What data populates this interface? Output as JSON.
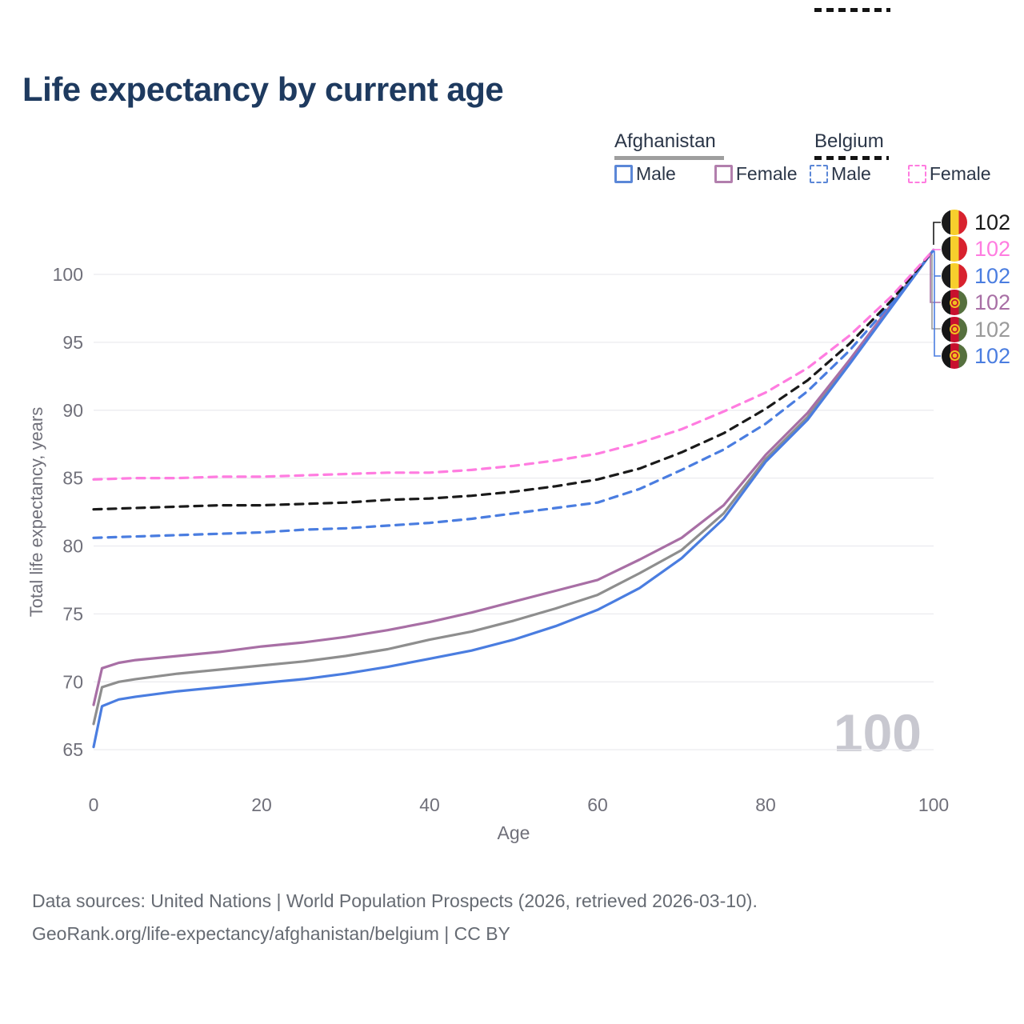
{
  "title": "Life expectancy by current age",
  "legend": {
    "afghanistan": {
      "label": "Afghanistan",
      "items": [
        {
          "label": "Male"
        },
        {
          "label": "Female"
        }
      ]
    },
    "belgium": {
      "label": "Belgium",
      "items": [
        {
          "label": "Male"
        },
        {
          "label": "Female"
        }
      ]
    }
  },
  "watermark": "100",
  "footer": {
    "line1": "Data sources: United Nations | World Population Prospects (2026, retrieved 2026-03-10).",
    "line2": "GeoRank.org/life-expectancy/afghanistan/belgium | CC BY"
  },
  "colors": {
    "title": "#1e3a5f",
    "male_blue": "#4a7de0",
    "afghanistan_female_purple": "#a86fa5",
    "afghanistan_combined_gray": "#8e8e8e",
    "belgium_female_pink": "#ff7ce0",
    "belgium_combined_black": "#1a1a1a",
    "gridline": "#ebebef",
    "axis_text": "#70707a",
    "watermark_gray": "#c8c8d0"
  },
  "end_labels": [
    {
      "flag": "belgium",
      "value": "102",
      "color": "#1a1a1a"
    },
    {
      "flag": "belgium",
      "value": "102",
      "color": "#ff7ce0"
    },
    {
      "flag": "belgium",
      "value": "102",
      "color": "#4a7de0"
    },
    {
      "flag": "afghanistan",
      "value": "102",
      "color": "#a86fa5"
    },
    {
      "flag": "afghanistan",
      "value": "102",
      "color": "#9a9a9a"
    },
    {
      "flag": "afghanistan",
      "value": "102",
      "color": "#4a7de0"
    }
  ],
  "chart_data": {
    "type": "line",
    "title": "Life expectancy by current age",
    "xlabel": "Age",
    "ylabel": "Total life expectancy, years",
    "xlim": [
      0,
      100
    ],
    "ylim": [
      65,
      102.3
    ],
    "xticks": [
      0,
      20,
      40,
      60,
      80,
      100
    ],
    "yticks": [
      65,
      70,
      75,
      80,
      85,
      90,
      95,
      100
    ],
    "grid": "horizontal-only",
    "legend_position": "top-right",
    "series": [
      {
        "id": "afghanistan-combined",
        "name": "Afghanistan (both sexes)",
        "country": "Afghanistan",
        "style": "solid",
        "dash": false,
        "color": "#8e8e8e",
        "end_label": "102",
        "points": [
          [
            0,
            66.9
          ],
          [
            1,
            69.6
          ],
          [
            3,
            70.0
          ],
          [
            5,
            70.2
          ],
          [
            10,
            70.6
          ],
          [
            15,
            70.9
          ],
          [
            20,
            71.2
          ],
          [
            25,
            71.5
          ],
          [
            30,
            71.9
          ],
          [
            35,
            72.4
          ],
          [
            40,
            73.1
          ],
          [
            45,
            73.7
          ],
          [
            50,
            74.5
          ],
          [
            55,
            75.4
          ],
          [
            60,
            76.4
          ],
          [
            65,
            78.0
          ],
          [
            70,
            79.7
          ],
          [
            75,
            82.4
          ],
          [
            80,
            86.4
          ],
          [
            85,
            89.5
          ],
          [
            90,
            93.5
          ],
          [
            95,
            97.7
          ],
          [
            100,
            101.8
          ]
        ]
      },
      {
        "id": "afghanistan-female",
        "name": "Afghanistan Female",
        "country": "Afghanistan",
        "style": "solid",
        "dash": false,
        "color": "#a86fa5",
        "end_label": "102",
        "points": [
          [
            0,
            68.3
          ],
          [
            1,
            71.0
          ],
          [
            3,
            71.4
          ],
          [
            5,
            71.6
          ],
          [
            10,
            71.9
          ],
          [
            15,
            72.2
          ],
          [
            20,
            72.6
          ],
          [
            25,
            72.9
          ],
          [
            30,
            73.3
          ],
          [
            35,
            73.8
          ],
          [
            40,
            74.4
          ],
          [
            45,
            75.1
          ],
          [
            50,
            75.9
          ],
          [
            55,
            76.7
          ],
          [
            60,
            77.5
          ],
          [
            65,
            79.0
          ],
          [
            70,
            80.6
          ],
          [
            75,
            83.0
          ],
          [
            80,
            86.7
          ],
          [
            85,
            89.8
          ],
          [
            90,
            93.7
          ],
          [
            95,
            97.8
          ],
          [
            100,
            101.8
          ]
        ]
      },
      {
        "id": "afghanistan-male",
        "name": "Afghanistan Male",
        "country": "Afghanistan",
        "style": "solid",
        "dash": false,
        "color": "#4a7de0",
        "end_label": "102",
        "points": [
          [
            0,
            65.2
          ],
          [
            1,
            68.2
          ],
          [
            3,
            68.7
          ],
          [
            5,
            68.9
          ],
          [
            10,
            69.3
          ],
          [
            15,
            69.6
          ],
          [
            20,
            69.9
          ],
          [
            25,
            70.2
          ],
          [
            30,
            70.6
          ],
          [
            35,
            71.1
          ],
          [
            40,
            71.7
          ],
          [
            45,
            72.3
          ],
          [
            50,
            73.1
          ],
          [
            55,
            74.1
          ],
          [
            60,
            75.3
          ],
          [
            65,
            76.9
          ],
          [
            70,
            79.1
          ],
          [
            75,
            82.0
          ],
          [
            80,
            86.2
          ],
          [
            85,
            89.3
          ],
          [
            90,
            93.4
          ],
          [
            95,
            97.6
          ],
          [
            100,
            101.8
          ]
        ]
      },
      {
        "id": "belgium-male",
        "name": "Belgium Male",
        "country": "Belgium",
        "style": "dashed",
        "dash": true,
        "color": "#4a7de0",
        "end_label": "102",
        "points": [
          [
            0,
            80.6
          ],
          [
            5,
            80.7
          ],
          [
            10,
            80.8
          ],
          [
            15,
            80.9
          ],
          [
            20,
            81.0
          ],
          [
            25,
            81.2
          ],
          [
            30,
            81.3
          ],
          [
            35,
            81.5
          ],
          [
            40,
            81.7
          ],
          [
            45,
            82.0
          ],
          [
            50,
            82.4
          ],
          [
            55,
            82.8
          ],
          [
            60,
            83.2
          ],
          [
            65,
            84.2
          ],
          [
            70,
            85.6
          ],
          [
            75,
            87.1
          ],
          [
            80,
            89.0
          ],
          [
            85,
            91.4
          ],
          [
            90,
            94.4
          ],
          [
            95,
            97.9
          ],
          [
            100,
            101.8
          ]
        ]
      },
      {
        "id": "belgium-combined",
        "name": "Belgium (both sexes)",
        "country": "Belgium",
        "style": "dashed",
        "dash": true,
        "color": "#1a1a1a",
        "end_label": "102",
        "points": [
          [
            0,
            82.7
          ],
          [
            5,
            82.8
          ],
          [
            10,
            82.9
          ],
          [
            15,
            83.0
          ],
          [
            20,
            83.0
          ],
          [
            25,
            83.1
          ],
          [
            30,
            83.2
          ],
          [
            35,
            83.4
          ],
          [
            40,
            83.5
          ],
          [
            45,
            83.7
          ],
          [
            50,
            84.0
          ],
          [
            55,
            84.4
          ],
          [
            60,
            84.9
          ],
          [
            65,
            85.7
          ],
          [
            70,
            86.9
          ],
          [
            75,
            88.3
          ],
          [
            80,
            90.1
          ],
          [
            85,
            92.2
          ],
          [
            90,
            94.9
          ],
          [
            95,
            98.1
          ],
          [
            100,
            101.8
          ]
        ]
      },
      {
        "id": "belgium-female",
        "name": "Belgium Female",
        "country": "Belgium",
        "style": "dashed",
        "dash": true,
        "color": "#ff7ce0",
        "end_label": "102",
        "points": [
          [
            0,
            84.9
          ],
          [
            5,
            85.0
          ],
          [
            10,
            85.0
          ],
          [
            15,
            85.1
          ],
          [
            20,
            85.1
          ],
          [
            25,
            85.2
          ],
          [
            30,
            85.3
          ],
          [
            35,
            85.4
          ],
          [
            40,
            85.4
          ],
          [
            45,
            85.6
          ],
          [
            50,
            85.9
          ],
          [
            55,
            86.3
          ],
          [
            60,
            86.8
          ],
          [
            65,
            87.6
          ],
          [
            70,
            88.6
          ],
          [
            75,
            89.9
          ],
          [
            80,
            91.3
          ],
          [
            85,
            93.1
          ],
          [
            90,
            95.5
          ],
          [
            95,
            98.4
          ],
          [
            100,
            101.8
          ]
        ]
      }
    ]
  }
}
